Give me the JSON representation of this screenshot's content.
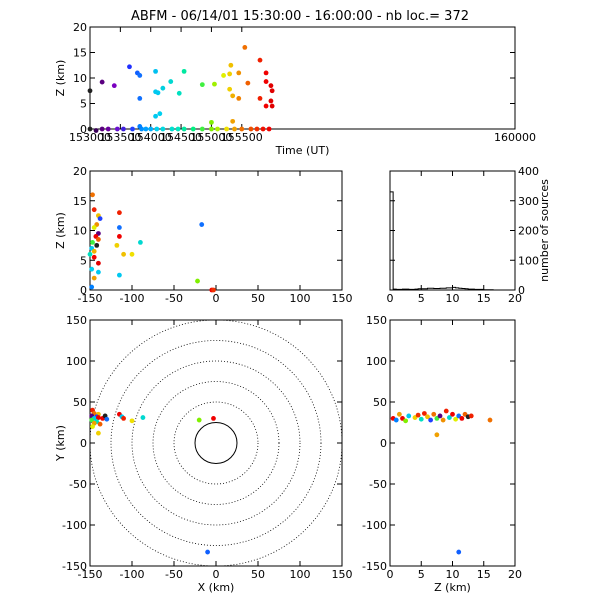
{
  "title": "ABFM - 06/14/01 15:30:00 - 16:00:00 - nb loc.=     372",
  "chart_data": [
    {
      "id": "time-height",
      "type": "scatter",
      "xlabel": "Time (UT)",
      "ylabel": "Z (km)",
      "xlim": [
        153000,
        160000
      ],
      "ylim": [
        0,
        20
      ],
      "xticks": [
        153000,
        153500,
        154000,
        154500,
        155000,
        155500,
        160000
      ],
      "xtick_values": [
        153000,
        153500,
        154000,
        154500,
        155000,
        155500,
        160000
      ],
      "yticks": [
        0,
        5,
        10,
        15,
        20
      ],
      "points": [
        {
          "x": 153000,
          "y": 7.5,
          "color": "#202020"
        },
        {
          "x": 153000,
          "y": 0,
          "color": "#202020"
        },
        {
          "x": 153100,
          "y": -0.3,
          "color": "#3a005a"
        },
        {
          "x": 153200,
          "y": 9.2,
          "color": "#5a0080"
        },
        {
          "x": 153200,
          "y": 0,
          "color": "#5a0080"
        },
        {
          "x": 153300,
          "y": 0,
          "color": "#6a00a0"
        },
        {
          "x": 153400,
          "y": 8.5,
          "color": "#7a00c0"
        },
        {
          "x": 153450,
          "y": 0,
          "color": "#6a10d0"
        },
        {
          "x": 153550,
          "y": 0,
          "color": "#4020e0"
        },
        {
          "x": 153650,
          "y": 12.2,
          "color": "#2030ff"
        },
        {
          "x": 153700,
          "y": 0,
          "color": "#2040ff"
        },
        {
          "x": 153780,
          "y": 11,
          "color": "#1060ff"
        },
        {
          "x": 153820,
          "y": 10.5,
          "color": "#1070ff"
        },
        {
          "x": 153820,
          "y": 6,
          "color": "#1070ff"
        },
        {
          "x": 153850,
          "y": 0,
          "color": "#0090ff"
        },
        {
          "x": 153820,
          "y": 0.5,
          "color": "#0080ff"
        },
        {
          "x": 153920,
          "y": 0,
          "color": "#00a0ff"
        },
        {
          "x": 154000,
          "y": 0,
          "color": "#00b0ff"
        },
        {
          "x": 154080,
          "y": 11.3,
          "color": "#00c0f0"
        },
        {
          "x": 154080,
          "y": 7.3,
          "color": "#00c8f0"
        },
        {
          "x": 154120,
          "y": 7.1,
          "color": "#00c8f0"
        },
        {
          "x": 154080,
          "y": 2.5,
          "color": "#00c8f0"
        },
        {
          "x": 154100,
          "y": 0,
          "color": "#00d0f0"
        },
        {
          "x": 154150,
          "y": 3,
          "color": "#00d0f0"
        },
        {
          "x": 154200,
          "y": 8,
          "color": "#00d0e0"
        },
        {
          "x": 154200,
          "y": 0,
          "color": "#00d8e0"
        },
        {
          "x": 154330,
          "y": 9.3,
          "color": "#00d8d0"
        },
        {
          "x": 154350,
          "y": 0,
          "color": "#00e0d0"
        },
        {
          "x": 154450,
          "y": 0,
          "color": "#00e8c0"
        },
        {
          "x": 154470,
          "y": 7,
          "color": "#00e0c0"
        },
        {
          "x": 154550,
          "y": 11.3,
          "color": "#00e8a0"
        },
        {
          "x": 154550,
          "y": 0,
          "color": "#00e8a0"
        },
        {
          "x": 154700,
          "y": 0,
          "color": "#00f080"
        },
        {
          "x": 154850,
          "y": 8.7,
          "color": "#40f040"
        },
        {
          "x": 154850,
          "y": 0,
          "color": "#40f040"
        },
        {
          "x": 155000,
          "y": 1.3,
          "color": "#80f000"
        },
        {
          "x": 155000,
          "y": 0,
          "color": "#80f000"
        },
        {
          "x": 155050,
          "y": 8.8,
          "color": "#a0f000"
        },
        {
          "x": 155100,
          "y": 0,
          "color": "#b0f000"
        },
        {
          "x": 155200,
          "y": 10.5,
          "color": "#e0f000"
        },
        {
          "x": 155250,
          "y": 0,
          "color": "#f0e000"
        },
        {
          "x": 155300,
          "y": 10.8,
          "color": "#f0d000"
        },
        {
          "x": 155300,
          "y": 7.8,
          "color": "#f0d000"
        },
        {
          "x": 155320,
          "y": 12.5,
          "color": "#f0c000"
        },
        {
          "x": 155350,
          "y": 6.5,
          "color": "#f0b000"
        },
        {
          "x": 155350,
          "y": 1.5,
          "color": "#f0a000"
        },
        {
          "x": 155380,
          "y": 0,
          "color": "#f0a000"
        },
        {
          "x": 155450,
          "y": 11,
          "color": "#f09000"
        },
        {
          "x": 155450,
          "y": 6,
          "color": "#f08000"
        },
        {
          "x": 155500,
          "y": 0,
          "color": "#f07000"
        },
        {
          "x": 155550,
          "y": 16,
          "color": "#f07000"
        },
        {
          "x": 155600,
          "y": 9,
          "color": "#f06000"
        },
        {
          "x": 155650,
          "y": 0,
          "color": "#f05000"
        },
        {
          "x": 155750,
          "y": 0,
          "color": "#f03000"
        },
        {
          "x": 155800,
          "y": 13.5,
          "color": "#f02000"
        },
        {
          "x": 155800,
          "y": 6,
          "color": "#f02000"
        },
        {
          "x": 155850,
          "y": 0,
          "color": "#f01000"
        },
        {
          "x": 155900,
          "y": 11,
          "color": "#f00000"
        },
        {
          "x": 155900,
          "y": 9.3,
          "color": "#f00000"
        },
        {
          "x": 155900,
          "y": 4.5,
          "color": "#f00000"
        },
        {
          "x": 155950,
          "y": 0,
          "color": "#f00000"
        },
        {
          "x": 155980,
          "y": 8.5,
          "color": "#e00000"
        },
        {
          "x": 155980,
          "y": 5.5,
          "color": "#e00000"
        },
        {
          "x": 156000,
          "y": 7.5,
          "color": "#e00000"
        },
        {
          "x": 156000,
          "y": 4.5,
          "color": "#e00000"
        }
      ]
    },
    {
      "id": "xz-scatter",
      "type": "scatter",
      "xlabel": "",
      "ylabel": "Z (km)",
      "xlim": [
        -150,
        150
      ],
      "ylim": [
        0,
        20
      ],
      "xticks": [
        -150,
        -100,
        -50,
        0,
        50,
        100,
        150
      ],
      "yticks": [
        0,
        5,
        10,
        15,
        20
      ],
      "points": [
        {
          "x": -147,
          "y": 16,
          "color": "#f07000"
        },
        {
          "x": -145,
          "y": 13.5,
          "color": "#f02000"
        },
        {
          "x": -140,
          "y": 12.5,
          "color": "#f0c000"
        },
        {
          "x": -138,
          "y": 12,
          "color": "#2040ff"
        },
        {
          "x": -142,
          "y": 11,
          "color": "#f09000"
        },
        {
          "x": -145,
          "y": 10.5,
          "color": "#e0f000"
        },
        {
          "x": -140,
          "y": 9.5,
          "color": "#5a0080"
        },
        {
          "x": -143,
          "y": 9,
          "color": "#f00000"
        },
        {
          "x": -140,
          "y": 8.5,
          "color": "#f06000"
        },
        {
          "x": -147,
          "y": 8,
          "color": "#40f040"
        },
        {
          "x": -142,
          "y": 7.5,
          "color": "#202020"
        },
        {
          "x": -148,
          "y": 7,
          "color": "#00c8f0"
        },
        {
          "x": -145,
          "y": 6.5,
          "color": "#f0b000"
        },
        {
          "x": -150,
          "y": 6,
          "color": "#00e0c0"
        },
        {
          "x": -145,
          "y": 5.5,
          "color": "#f00000"
        },
        {
          "x": -140,
          "y": 4.5,
          "color": "#e00000"
        },
        {
          "x": -148,
          "y": 3.5,
          "color": "#00d0f0"
        },
        {
          "x": -145,
          "y": 2,
          "color": "#f0a000"
        },
        {
          "x": -148,
          "y": 0.5,
          "color": "#0080ff"
        },
        {
          "x": -140,
          "y": 3,
          "color": "#00c8f0"
        },
        {
          "x": -115,
          "y": 13,
          "color": "#f02000"
        },
        {
          "x": -115,
          "y": 10.5,
          "color": "#1070ff"
        },
        {
          "x": -115,
          "y": 9,
          "color": "#f00000"
        },
        {
          "x": -118,
          "y": 7.5,
          "color": "#f0d000"
        },
        {
          "x": -110,
          "y": 6,
          "color": "#f0c000"
        },
        {
          "x": -115,
          "y": 2.5,
          "color": "#00c8f0"
        },
        {
          "x": -100,
          "y": 6,
          "color": "#f0e000"
        },
        {
          "x": -90,
          "y": 8,
          "color": "#00d8d0"
        },
        {
          "x": -22,
          "y": 1.5,
          "color": "#80f000"
        },
        {
          "x": -17,
          "y": 11,
          "color": "#1070ff"
        },
        {
          "x": -5,
          "y": 0,
          "color": "#f00000"
        },
        {
          "x": -3,
          "y": 0,
          "color": "#f03000"
        }
      ]
    },
    {
      "id": "height-histogram",
      "type": "line",
      "xlabel": "",
      "ylabel": "number of sources",
      "xlim": [
        0,
        20
      ],
      "ylim": [
        0,
        400
      ],
      "xticks": [
        0,
        5,
        10,
        15,
        20
      ],
      "yticks": [
        0,
        100,
        200,
        300,
        400
      ],
      "x": [
        0,
        0.5,
        1,
        1.5,
        2,
        2.5,
        3,
        3.5,
        4,
        4.5,
        5,
        5.5,
        6,
        6.5,
        7,
        7.5,
        8,
        8.5,
        9,
        9.5,
        10,
        10.5,
        11,
        11.5,
        12,
        12.5,
        13,
        13.5,
        14,
        14.5,
        15,
        15.5,
        16,
        16.5,
        17,
        17.5,
        18,
        18.5,
        19,
        19.5,
        20
      ],
      "values": [
        330,
        3,
        2,
        2,
        3,
        3,
        2,
        2,
        3,
        4,
        4,
        4,
        6,
        6,
        5,
        5,
        6,
        6,
        7,
        7,
        9,
        7,
        6,
        5,
        4,
        3,
        3,
        2,
        2,
        2,
        1,
        1,
        1,
        0,
        0,
        0,
        0,
        0,
        0,
        0,
        0
      ]
    },
    {
      "id": "plan-view",
      "type": "scatter",
      "xlabel": "X (km)",
      "ylabel": "Y (km)",
      "xlim": [
        -150,
        150
      ],
      "ylim": [
        -150,
        150
      ],
      "xticks": [
        -150,
        -100,
        -50,
        0,
        50,
        100,
        150
      ],
      "yticks": [
        -150,
        -100,
        -50,
        0,
        50,
        100,
        150
      ],
      "range_rings_km": [
        25,
        50,
        75,
        100,
        125,
        150
      ],
      "points": [
        {
          "x": -147,
          "y": 40,
          "color": "#f02000"
        },
        {
          "x": -145,
          "y": 36,
          "color": "#f07000"
        },
        {
          "x": -140,
          "y": 35,
          "color": "#f0c000"
        },
        {
          "x": -148,
          "y": 33,
          "color": "#5a0080"
        },
        {
          "x": -142,
          "y": 32,
          "color": "#2040ff"
        },
        {
          "x": -145,
          "y": 30,
          "color": "#00c8f0"
        },
        {
          "x": -140,
          "y": 31,
          "color": "#f00000"
        },
        {
          "x": -148,
          "y": 28,
          "color": "#40f040"
        },
        {
          "x": -142,
          "y": 26,
          "color": "#00e0c0"
        },
        {
          "x": -145,
          "y": 24,
          "color": "#f0a000"
        },
        {
          "x": -138,
          "y": 23,
          "color": "#f06000"
        },
        {
          "x": -147,
          "y": 20,
          "color": "#e0f000"
        },
        {
          "x": -140,
          "y": 12,
          "color": "#f0d000"
        },
        {
          "x": -135,
          "y": 30,
          "color": "#f00000"
        },
        {
          "x": -132,
          "y": 33,
          "color": "#202020"
        },
        {
          "x": -130,
          "y": 29,
          "color": "#1070ff"
        },
        {
          "x": -115,
          "y": 35,
          "color": "#f00000"
        },
        {
          "x": -112,
          "y": 32,
          "color": "#00c8f0"
        },
        {
          "x": -110,
          "y": 30,
          "color": "#f02000"
        },
        {
          "x": -100,
          "y": 27,
          "color": "#f0e000"
        },
        {
          "x": -87,
          "y": 31,
          "color": "#00d8d0"
        },
        {
          "x": -20,
          "y": 28,
          "color": "#80f000"
        },
        {
          "x": -3,
          "y": 30,
          "color": "#f00000"
        },
        {
          "x": -10,
          "y": -133,
          "color": "#1060ff"
        }
      ]
    },
    {
      "id": "zy-scatter",
      "type": "scatter",
      "xlabel": "Z (km)",
      "ylabel": "",
      "xlim": [
        0,
        20
      ],
      "ylim": [
        -150,
        150
      ],
      "xticks": [
        0,
        5,
        10,
        15,
        20
      ],
      "yticks": [
        -150,
        -100,
        -50,
        0,
        50,
        100,
        150
      ],
      "points": [
        {
          "x": 0.5,
          "y": 30,
          "color": "#f00000"
        },
        {
          "x": 1,
          "y": 28,
          "color": "#0080ff"
        },
        {
          "x": 1.5,
          "y": 35,
          "color": "#f0a000"
        },
        {
          "x": 2,
          "y": 30,
          "color": "#f00000"
        },
        {
          "x": 2.5,
          "y": 27,
          "color": "#80f000"
        },
        {
          "x": 3,
          "y": 33,
          "color": "#00c8f0"
        },
        {
          "x": 4,
          "y": 31,
          "color": "#f0d000"
        },
        {
          "x": 4.5,
          "y": 34,
          "color": "#f03000"
        },
        {
          "x": 5,
          "y": 29,
          "color": "#00e0c0"
        },
        {
          "x": 5.5,
          "y": 36,
          "color": "#f02000"
        },
        {
          "x": 6,
          "y": 32,
          "color": "#f0c000"
        },
        {
          "x": 6.5,
          "y": 28,
          "color": "#2040ff"
        },
        {
          "x": 7,
          "y": 35,
          "color": "#f07000"
        },
        {
          "x": 7.5,
          "y": 30,
          "color": "#40f040"
        },
        {
          "x": 8,
          "y": 33,
          "color": "#5a0080"
        },
        {
          "x": 8.5,
          "y": 28,
          "color": "#f09000"
        },
        {
          "x": 9,
          "y": 39,
          "color": "#f02000"
        },
        {
          "x": 9.5,
          "y": 31,
          "color": "#00d8d0"
        },
        {
          "x": 10,
          "y": 35,
          "color": "#f00000"
        },
        {
          "x": 10.5,
          "y": 29,
          "color": "#e0f000"
        },
        {
          "x": 11,
          "y": 33,
          "color": "#1070ff"
        },
        {
          "x": 11.5,
          "y": 30,
          "color": "#f00000"
        },
        {
          "x": 12,
          "y": 35,
          "color": "#f06000"
        },
        {
          "x": 12.5,
          "y": 32,
          "color": "#202020"
        },
        {
          "x": 13,
          "y": 33,
          "color": "#f02000"
        },
        {
          "x": 7.5,
          "y": 10,
          "color": "#f0a000"
        },
        {
          "x": 16,
          "y": 28,
          "color": "#f07000"
        },
        {
          "x": 11,
          "y": -133,
          "color": "#1060ff"
        }
      ]
    }
  ]
}
